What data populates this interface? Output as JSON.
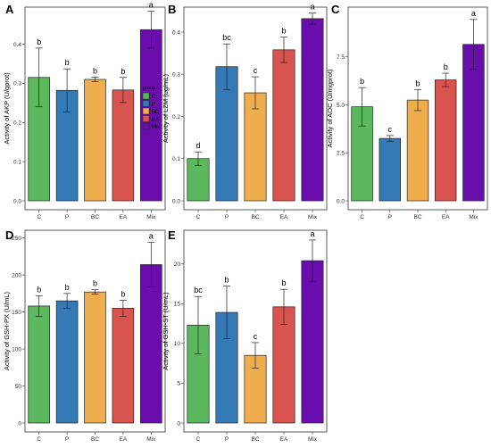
{
  "legend": {
    "title": "group",
    "entries": [
      "C",
      "P",
      "BC",
      "EA",
      "Mix"
    ]
  },
  "colors": {
    "C": "#5CB85C",
    "P": "#337AB7",
    "BC": "#F0AD4E",
    "EA": "#D9534F",
    "Mix": "#6A0DAD"
  },
  "chart_data": [
    {
      "panel": "A",
      "type": "bar",
      "categories": [
        "C",
        "P",
        "BC",
        "EA",
        "Mix"
      ],
      "values": [
        0.315,
        0.282,
        0.31,
        0.283,
        0.437
      ],
      "errors": [
        0.075,
        0.055,
        0.006,
        0.032,
        0.047
      ],
      "letters": [
        "b",
        "b",
        "b",
        "b",
        "a"
      ],
      "ylabel": "Activity of AKP (U/gprot)",
      "ylim": [
        0,
        0.49
      ],
      "yticks": [
        0.0,
        0.1,
        0.2,
        0.3,
        0.4
      ],
      "ytick_labels": [
        "0.0",
        "0.1",
        "0.2",
        "0.3",
        "0.4"
      ]
    },
    {
      "panel": "B",
      "type": "bar",
      "categories": [
        "C",
        "P",
        "BC",
        "EA",
        "Mix"
      ],
      "values": [
        0.1,
        0.318,
        0.256,
        0.358,
        0.432
      ],
      "errors": [
        0.016,
        0.054,
        0.038,
        0.03,
        0.013
      ],
      "letters": [
        "d",
        "bc",
        "c",
        "b",
        "a"
      ],
      "ylabel": "Activity of LZM (ug/mL)",
      "ylim": [
        0,
        0.455
      ],
      "yticks": [
        0.0,
        0.1,
        0.2,
        0.3,
        0.4
      ],
      "ytick_labels": [
        "0.0",
        "0.1",
        "0.2",
        "0.3",
        "0.4"
      ]
    },
    {
      "panel": "C",
      "type": "bar",
      "categories": [
        "C",
        "P",
        "BC",
        "EA",
        "Mix"
      ],
      "values": [
        4.9,
        3.25,
        5.25,
        6.3,
        8.15
      ],
      "errors": [
        1.0,
        0.15,
        0.55,
        0.35,
        1.3
      ],
      "letters": [
        "b",
        "c",
        "b",
        "b",
        "a"
      ],
      "ylabel": "Activity of AOC (U/mgprot)",
      "ylim": [
        0,
        10.0
      ],
      "yticks": [
        0.0,
        2.5,
        5.0,
        7.5
      ],
      "ytick_labels": [
        "0.0",
        "2.5",
        "5.0",
        "7.5"
      ]
    },
    {
      "panel": "D",
      "type": "bar",
      "categories": [
        "C",
        "P",
        "BC",
        "EA",
        "Mix"
      ],
      "values": [
        158,
        165,
        177,
        155,
        214
      ],
      "errors": [
        14,
        10,
        3,
        11,
        30
      ],
      "letters": [
        "b",
        "b",
        "b",
        "b",
        "a"
      ],
      "ylabel": "Activity of GSH-PX (U/mL)",
      "ylim": [
        0,
        258
      ],
      "yticks": [
        0,
        50,
        100,
        150,
        200,
        250
      ],
      "ytick_labels": [
        "0",
        "50",
        "100",
        "150",
        "200",
        "250"
      ]
    },
    {
      "panel": "E",
      "type": "bar",
      "categories": [
        "C",
        "P",
        "BC",
        "EA",
        "Mix"
      ],
      "values": [
        12.3,
        13.9,
        8.5,
        14.6,
        20.4
      ],
      "errors": [
        3.6,
        3.3,
        1.6,
        2.2,
        2.6
      ],
      "letters": [
        "bc",
        "b",
        "c",
        "b",
        "a"
      ],
      "ylabel": "Activity of GSH-ST (U/mL)",
      "ylim": [
        0,
        24.0
      ],
      "yticks": [
        0,
        5,
        10,
        15,
        20
      ],
      "ytick_labels": [
        "0",
        "5",
        "10",
        "15",
        "20"
      ]
    }
  ]
}
